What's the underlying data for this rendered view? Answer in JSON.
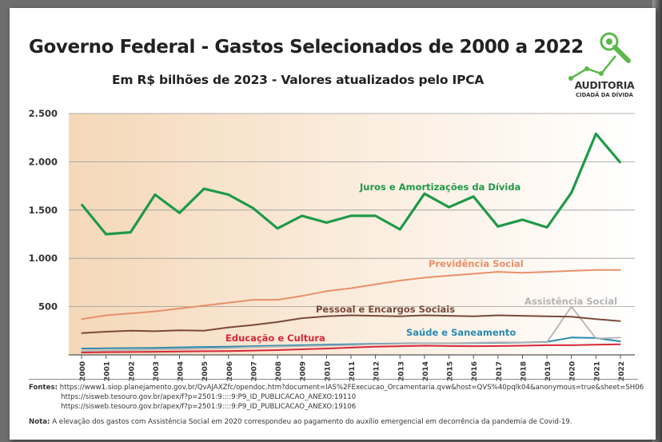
{
  "header": {
    "title": "Governo Federal - Gastos Selecionados de 2000 a 2022",
    "subtitle": "Em R$ bilhões de 2023 - Valores atualizados pelo IPCA"
  },
  "logo": {
    "name": "AUDITORIA",
    "tagline": "CIDADÃ DA DÍVIDA"
  },
  "colors": {
    "juros": "#1f9a48",
    "previdencia": "#e8906a",
    "pessoal": "#7a4a3a",
    "assistencia": "#b4b4b4",
    "saude": "#2a8ab0",
    "educacao": "#d6283a",
    "background_start": "#f4d8b8",
    "logo_green": "#5cb84a"
  },
  "chart_data": {
    "type": "line",
    "title": "Governo Federal - Gastos Selecionados de 2000 a 2022",
    "ylabel": "R$ bilhões de 2023",
    "ylim": [
      0,
      2500
    ],
    "yticks": [
      0,
      500,
      1000,
      1500,
      2000,
      2500
    ],
    "ytick_labels": [
      "",
      "500",
      "1.000",
      "1.500",
      "2.000",
      "2.500"
    ],
    "x": [
      "2000",
      "2001",
      "2002",
      "2003",
      "2004",
      "2005",
      "2006",
      "2007",
      "2008",
      "2009",
      "2010",
      "2011",
      "2012",
      "2013",
      "2014",
      "2015",
      "2016",
      "2017",
      "2018",
      "2019",
      "2020",
      "2021",
      "2022"
    ],
    "grid": true,
    "series": [
      {
        "key": "juros",
        "name": "Juros e Amortizações da Dívida",
        "values": [
          1560,
          1250,
          1270,
          1660,
          1470,
          1720,
          1660,
          1520,
          1310,
          1440,
          1370,
          1440,
          1440,
          1300,
          1670,
          1530,
          1640,
          1330,
          1400,
          1320,
          1680,
          2290,
          1990
        ]
      },
      {
        "key": "previdencia",
        "name": "Previdência Social",
        "values": [
          370,
          410,
          430,
          450,
          480,
          510,
          540,
          570,
          570,
          610,
          660,
          690,
          730,
          770,
          800,
          820,
          840,
          860,
          850,
          860,
          870,
          880,
          880
        ]
      },
      {
        "key": "pessoal",
        "name": "Pessoal e Encargos Sociais",
        "values": [
          225,
          240,
          250,
          245,
          255,
          250,
          285,
          310,
          340,
          380,
          400,
          410,
          405,
          400,
          410,
          405,
          400,
          410,
          405,
          400,
          395,
          370,
          350
        ]
      },
      {
        "key": "assistencia",
        "name": "Assistência Social",
        "values": [
          40,
          45,
          50,
          55,
          60,
          65,
          70,
          80,
          85,
          90,
          95,
          100,
          110,
          115,
          120,
          120,
          125,
          130,
          130,
          130,
          500,
          170,
          180
        ]
      },
      {
        "key": "saude",
        "name": "Saúde e Saneamento",
        "values": [
          65,
          68,
          70,
          72,
          78,
          82,
          85,
          90,
          95,
          100,
          105,
          110,
          115,
          118,
          120,
          120,
          122,
          125,
          128,
          135,
          180,
          175,
          140
        ]
      },
      {
        "key": "educacao",
        "name": "Educação e Cultura",
        "values": [
          25,
          28,
          30,
          32,
          35,
          38,
          40,
          45,
          50,
          58,
          65,
          75,
          85,
          90,
          95,
          92,
          90,
          92,
          95,
          100,
          100,
          105,
          110
        ]
      }
    ]
  },
  "footer": {
    "sources_label": "Fontes:",
    "source_1": "https://www1.siop.planejamento.gov.br/QvAJAXZfc/opendoc.htm?document=IAS%2FExecucao_Orcamentaria.qvw&host=QVS%40pqlk04&anonymous=true&sheet=SH06",
    "source_2": "https://sisweb.tesouro.gov.br/apex/f?p=2501:9::::9:P9_ID_PUBLICACAO_ANEXO:19110",
    "source_3": "https://sisweb.tesouro.gov.br/apex/f?p=2501:9::::9:P9_ID_PUBLICACAO_ANEXO:19106",
    "note_label": "Nota:",
    "note_text": "A elevação dos gastos com Assistência Social em 2020 correspondeu ao pagamento do auxílio emergencial em decorrência da pandemia de Covid-19."
  }
}
